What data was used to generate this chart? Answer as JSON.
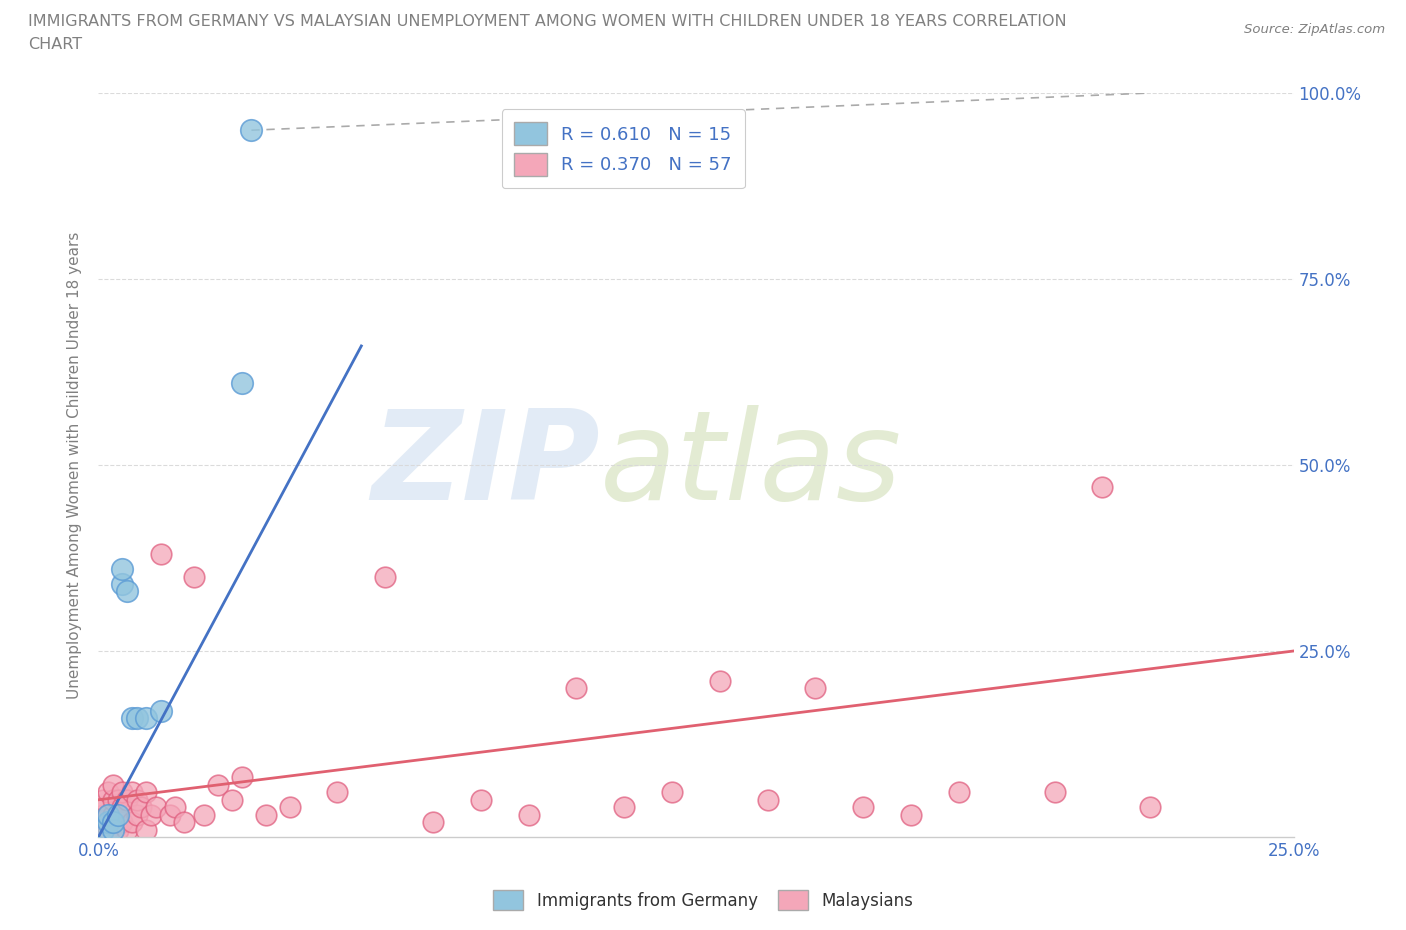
{
  "title_line1": "IMMIGRANTS FROM GERMANY VS MALAYSIAN UNEMPLOYMENT AMONG WOMEN WITH CHILDREN UNDER 18 YEARS CORRELATION",
  "title_line2": "CHART",
  "source": "Source: ZipAtlas.com",
  "ylabel": "Unemployment Among Women with Children Under 18 years",
  "xlim": [
    0.0,
    0.25
  ],
  "ylim": [
    0.0,
    1.0
  ],
  "blue_color": "#92C5DE",
  "blue_edge_color": "#5B9BD5",
  "pink_color": "#F4A7B9",
  "pink_edge_color": "#E06080",
  "blue_line_color": "#4472C4",
  "pink_line_color": "#E06070",
  "dash_color": "#AAAAAA",
  "blue_scatter_x": [
    0.001,
    0.002,
    0.002,
    0.003,
    0.003,
    0.004,
    0.005,
    0.005,
    0.006,
    0.007,
    0.008,
    0.01,
    0.013,
    0.03,
    0.032
  ],
  "blue_scatter_y": [
    0.01,
    0.02,
    0.03,
    0.01,
    0.02,
    0.03,
    0.34,
    0.36,
    0.33,
    0.16,
    0.16,
    0.16,
    0.17,
    0.61,
    0.95
  ],
  "pink_scatter_x": [
    0.001,
    0.001,
    0.001,
    0.001,
    0.002,
    0.002,
    0.002,
    0.002,
    0.003,
    0.003,
    0.003,
    0.003,
    0.004,
    0.004,
    0.004,
    0.005,
    0.005,
    0.005,
    0.006,
    0.006,
    0.007,
    0.007,
    0.008,
    0.008,
    0.009,
    0.01,
    0.01,
    0.011,
    0.012,
    0.013,
    0.015,
    0.016,
    0.018,
    0.02,
    0.022,
    0.025,
    0.028,
    0.03,
    0.035,
    0.04,
    0.05,
    0.06,
    0.07,
    0.08,
    0.09,
    0.1,
    0.11,
    0.12,
    0.13,
    0.14,
    0.15,
    0.16,
    0.17,
    0.18,
    0.2,
    0.21,
    0.22
  ],
  "pink_scatter_y": [
    0.02,
    0.03,
    0.04,
    0.05,
    0.01,
    0.02,
    0.03,
    0.06,
    0.02,
    0.03,
    0.05,
    0.07,
    0.01,
    0.03,
    0.05,
    0.02,
    0.04,
    0.06,
    0.01,
    0.05,
    0.02,
    0.06,
    0.03,
    0.05,
    0.04,
    0.01,
    0.06,
    0.03,
    0.04,
    0.38,
    0.03,
    0.04,
    0.02,
    0.35,
    0.03,
    0.07,
    0.05,
    0.08,
    0.03,
    0.04,
    0.06,
    0.35,
    0.02,
    0.05,
    0.03,
    0.2,
    0.04,
    0.06,
    0.21,
    0.05,
    0.2,
    0.04,
    0.03,
    0.06,
    0.06,
    0.47,
    0.04
  ],
  "blue_line_x": [
    0.0,
    0.055
  ],
  "blue_line_y": [
    0.0,
    0.66
  ],
  "pink_line_x": [
    0.0,
    0.25
  ],
  "pink_line_y": [
    0.05,
    0.25
  ],
  "dash_line_x": [
    0.032,
    0.22
  ],
  "dash_line_y": [
    0.95,
    1.0
  ],
  "watermark_zip": "ZIP",
  "watermark_atlas": "atlas",
  "legend_blue_label": "R = 0.610   N = 15",
  "legend_pink_label": "R = 0.370   N = 57",
  "series1_label": "Immigrants from Germany",
  "series2_label": "Malaysians",
  "background_color": "#ffffff",
  "grid_color": "#d8d8d8",
  "tick_color": "#4472C4",
  "title_color": "#808080",
  "ylabel_color": "#808080"
}
